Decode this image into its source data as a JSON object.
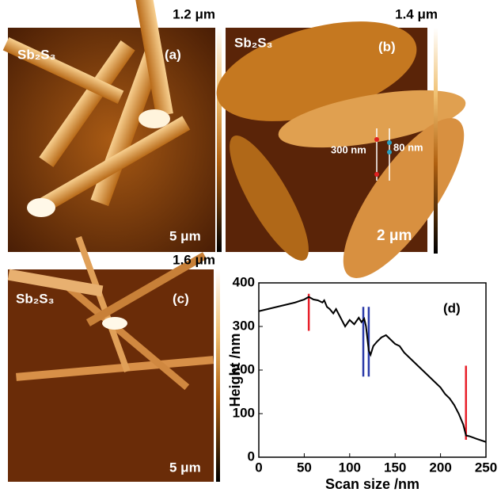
{
  "panels": [
    {
      "scale_max": "1.2 μm",
      "material": "Sb₂S₃",
      "tag": "(a)",
      "scale_bar": "5 μm"
    },
    {
      "scale_max": "1.4 μm",
      "material": "Sb₂S₃",
      "tag": "(b)",
      "scale_bar": "2 μm",
      "annotations": [
        "300 nm",
        "80 nm"
      ]
    },
    {
      "scale_max": "1.6 μm",
      "material": "Sb₂S₃",
      "tag": "(c)",
      "scale_bar": "5 μm"
    }
  ],
  "chart_data": {
    "type": "line",
    "tag": "(d)",
    "x_label": "Scan size /nm",
    "y_label": "Height /nm",
    "xlim": [
      0,
      250
    ],
    "xticks": [
      0,
      50,
      100,
      150,
      200,
      250
    ],
    "ylim": [
      0,
      400
    ],
    "yticks": [
      0,
      100,
      200,
      300,
      400
    ],
    "series": [
      {
        "color": "#000000",
        "x": [
          0,
          10,
          20,
          30,
          40,
          50,
          55,
          60,
          65,
          70,
          72,
          75,
          78,
          82,
          85,
          90,
          95,
          100,
          105,
          110,
          113,
          116,
          118,
          121,
          123,
          126,
          130,
          135,
          140,
          145,
          150,
          155,
          160,
          165,
          170,
          175,
          180,
          185,
          190,
          195,
          200,
          205,
          210,
          215,
          220,
          225,
          228,
          232,
          240,
          250
        ],
        "values": [
          335,
          340,
          345,
          350,
          355,
          362,
          368,
          362,
          360,
          355,
          360,
          345,
          340,
          330,
          340,
          320,
          300,
          315,
          305,
          320,
          310,
          318,
          300,
          245,
          235,
          255,
          265,
          275,
          280,
          270,
          260,
          255,
          240,
          230,
          220,
          210,
          200,
          190,
          180,
          170,
          160,
          145,
          135,
          120,
          100,
          75,
          50,
          48,
          42,
          35
        ]
      }
    ],
    "markers": [
      {
        "x": 55,
        "y": [
          290,
          375
        ],
        "color": "#e8202a"
      },
      {
        "x": 115,
        "y": [
          185,
          345
        ],
        "color": "#2a3aa8"
      },
      {
        "x": 121,
        "y": [
          185,
          345
        ],
        "color": "#2a3aa8"
      },
      {
        "x": 228,
        "y": [
          40,
          210
        ],
        "color": "#e8202a"
      }
    ]
  }
}
